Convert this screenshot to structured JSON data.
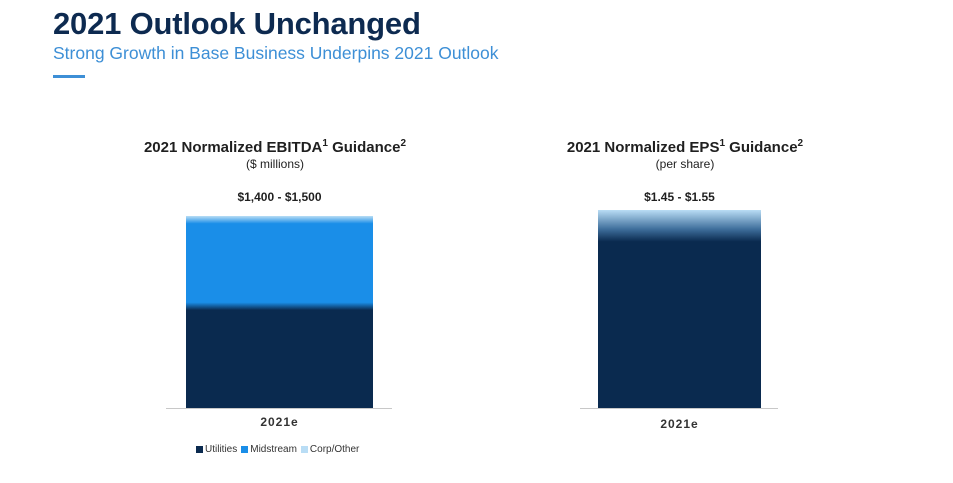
{
  "header": {
    "title": "2021 Outlook Unchanged",
    "subtitle": "Strong Growth in Base Business Underpins 2021 Outlook"
  },
  "colors": {
    "utilities": "#0a2a4f",
    "midstream": "#1a8ee8",
    "corp_other": "#b9ddf5"
  },
  "legend": {
    "utilities": "Utilities",
    "midstream": "Midstream",
    "corp_other": "Corp/Other"
  },
  "chart_data": [
    {
      "type": "bar",
      "stacked": true,
      "title": "2021 Normalized EBITDA",
      "title_sup1": "1",
      "title_mid": " Guidance",
      "title_sup2": "2",
      "unit": "($ millions)",
      "range_label": "$1,400 - $1,500",
      "categories": [
        "2021e"
      ],
      "range": [
        1400,
        1500
      ],
      "series_share": {
        "utilities": 0.53,
        "midstream": 0.45,
        "corp_other": 0.02
      }
    },
    {
      "type": "bar",
      "stacked": true,
      "title": "2021 Normalized EPS",
      "title_sup1": "1",
      "title_mid": " Guidance",
      "title_sup2": "2",
      "unit": "(per share)",
      "range_label": "$1.45 - $1.55",
      "categories": [
        "2021e"
      ],
      "range": [
        1.45,
        1.55
      ],
      "series_share": {
        "utilities": 0.84,
        "midstream": 0.1,
        "corp_other": 0.06
      }
    }
  ]
}
